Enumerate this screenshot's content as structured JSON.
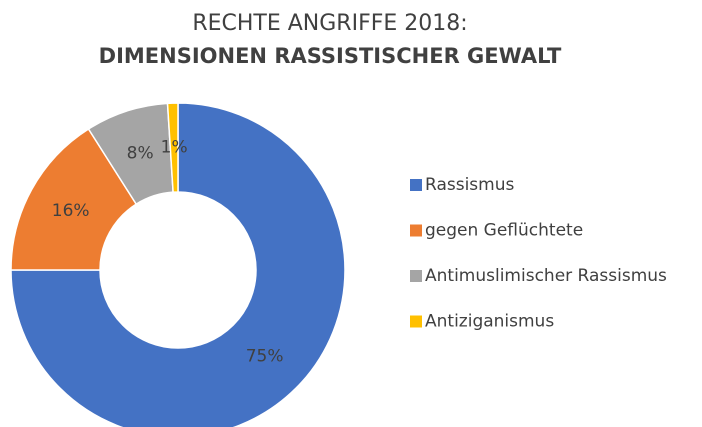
{
  "chart_data": {
    "type": "donut",
    "title": "RECHTE ANGRIFFE 2018:",
    "subtitle": "DIMENSIONEN RASSISTISCHER GEWALT",
    "categories": [
      "Rassismus",
      "gegen Geflüchtete",
      "Antimuslimischer Rassismus",
      "Antiziganismus"
    ],
    "values": [
      75,
      16,
      8,
      1
    ],
    "value_labels": [
      "75%",
      "16%",
      "8%",
      "1%"
    ],
    "colors": [
      "#4472c4",
      "#ed7d31",
      "#a5a5a5",
      "#ffc000"
    ],
    "legend": "right"
  }
}
